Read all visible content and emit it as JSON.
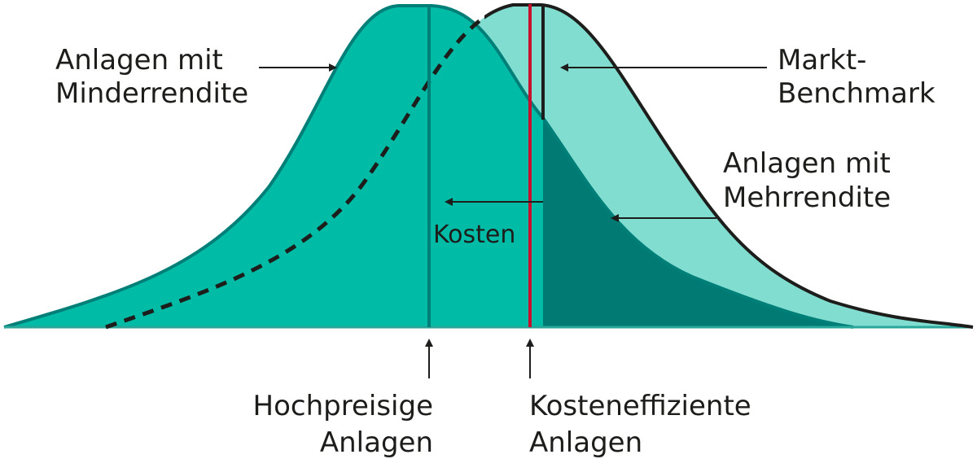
{
  "labels": {
    "underperform_1": "Anlagen mit",
    "underperform_2": "Minderrendite",
    "benchmark_1": "Markt-",
    "benchmark_2": "Benchmark",
    "outperform_1": "Anlagen mit",
    "outperform_2": "Mehrrendite",
    "costs": "Kosten",
    "expensive_1": "Hochpreisige",
    "expensive_2": "Anlagen",
    "efficient_1": "Kosteneffiziente",
    "efficient_2": "Anlagen"
  },
  "colors": {
    "fund_distribution": "#00bba5",
    "fund_outline": "#007f78",
    "market_distribution": "#80ddd0",
    "outperform_area": "#007a72",
    "cost_efficient_line": "#c8102e",
    "outline": "#1d1d1b"
  }
}
